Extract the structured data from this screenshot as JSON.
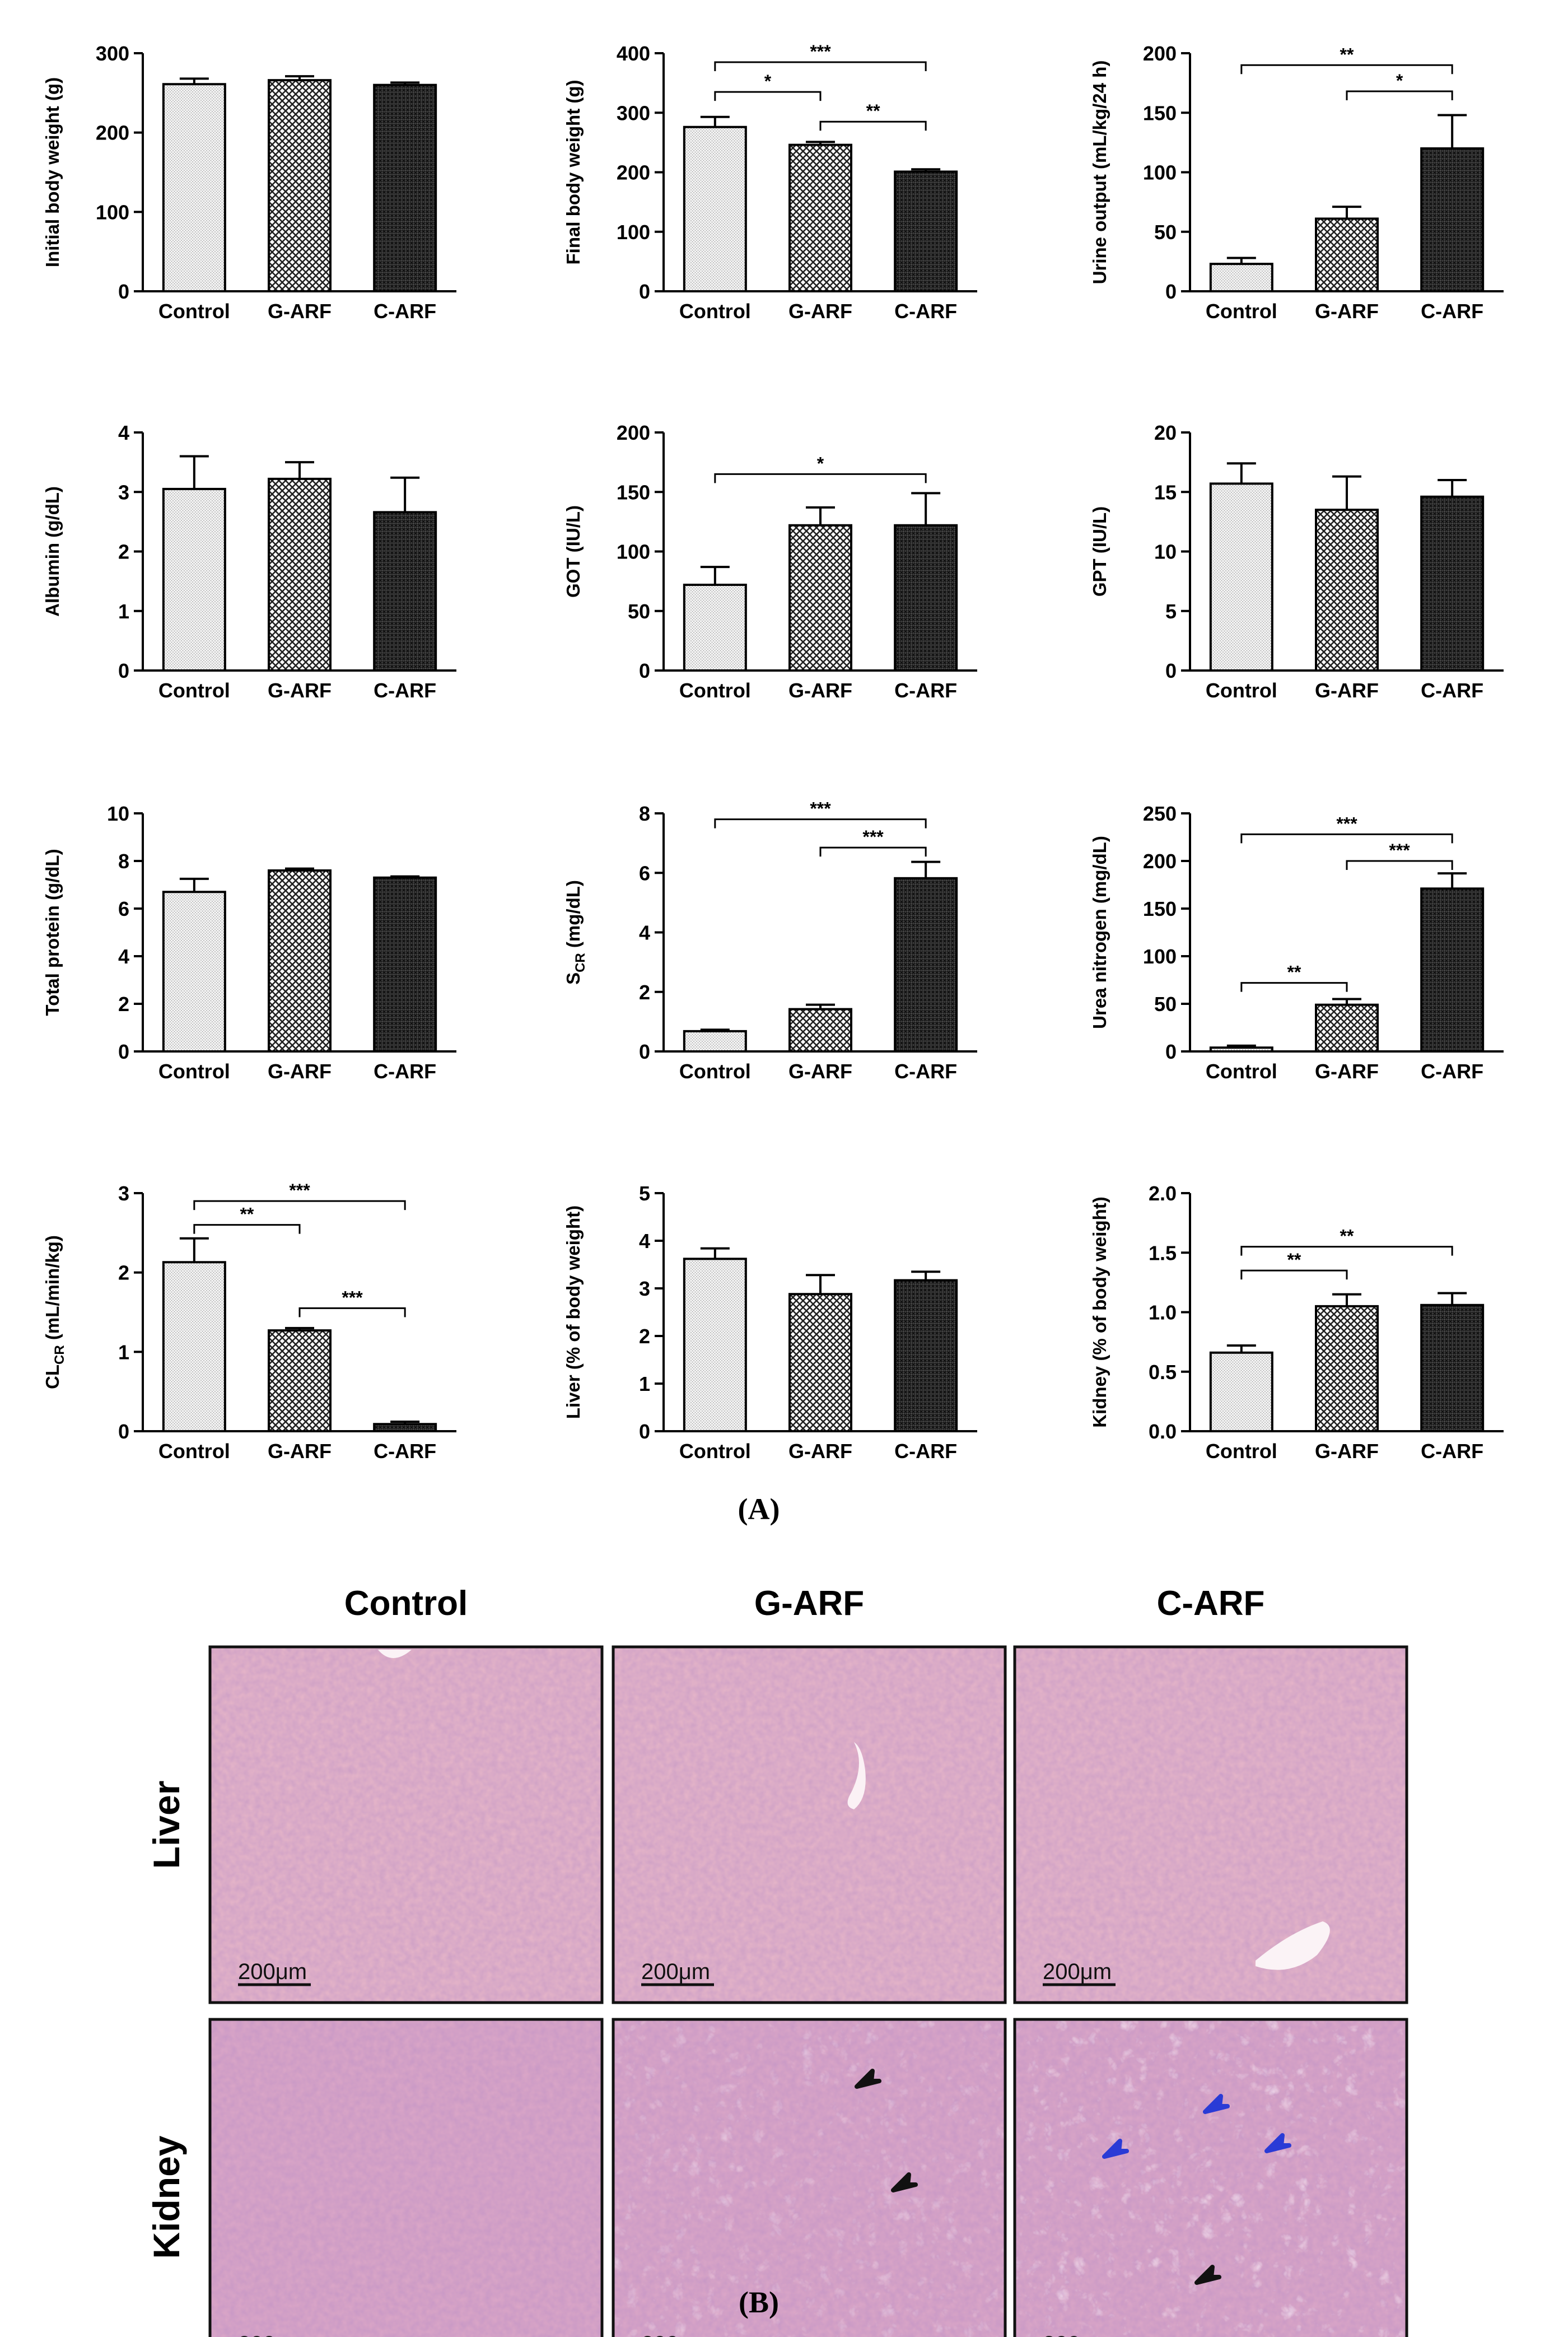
{
  "figure": {
    "panel_a_label": "(A)",
    "panel_b_label": "(B)",
    "columns": [
      "Control",
      "G-ARF",
      "C-ARF"
    ],
    "rows": [
      "Liver",
      "Kidney"
    ],
    "scale_bar": "200μm"
  },
  "chart_data": [
    {
      "type": "bar",
      "ylabel": "Initial body weight (g)",
      "categories": [
        "Control",
        "G-ARF",
        "C-ARF"
      ],
      "values": [
        261,
        266,
        260
      ],
      "errors": [
        7,
        5,
        3
      ],
      "ylim": [
        0,
        300
      ],
      "yticks": [
        0,
        100,
        200,
        300
      ],
      "tick_labels": [
        "0",
        "100",
        "200",
        "300"
      ],
      "significance": []
    },
    {
      "type": "bar",
      "ylabel": "Final body weight (g)",
      "categories": [
        "Control",
        "G-ARF",
        "C-ARF"
      ],
      "values": [
        276,
        246,
        201
      ],
      "errors": [
        17,
        5,
        4
      ],
      "ylim": [
        0,
        400
      ],
      "yticks": [
        0,
        100,
        200,
        300,
        400
      ],
      "tick_labels": [
        "0",
        "100",
        "200",
        "300",
        "400"
      ],
      "significance": [
        {
          "from": 0,
          "to": 1,
          "label": "*",
          "y": 335
        },
        {
          "from": 1,
          "to": 2,
          "label": "**",
          "y": 285
        },
        {
          "from": 0,
          "to": 2,
          "label": "***",
          "y": 385
        }
      ]
    },
    {
      "type": "bar",
      "ylabel": "Urine output (mL/kg/24 h)",
      "categories": [
        "Control",
        "G-ARF",
        "C-ARF"
      ],
      "values": [
        23,
        61,
        120
      ],
      "errors": [
        5,
        10,
        28
      ],
      "ylim": [
        0,
        200
      ],
      "yticks": [
        0,
        50,
        100,
        150,
        200
      ],
      "tick_labels": [
        "0",
        "50",
        "100",
        "150",
        "200"
      ],
      "significance": [
        {
          "from": 1,
          "to": 2,
          "label": "*",
          "y": 168
        },
        {
          "from": 0,
          "to": 2,
          "label": "**",
          "y": 190
        }
      ]
    },
    {
      "type": "bar",
      "ylabel": "Albumin (g/dL)",
      "categories": [
        "Control",
        "G-ARF",
        "C-ARF"
      ],
      "values": [
        3.05,
        3.22,
        2.66
      ],
      "errors": [
        0.55,
        0.28,
        0.58
      ],
      "ylim": [
        0,
        4
      ],
      "yticks": [
        0,
        1,
        2,
        3,
        4
      ],
      "tick_labels": [
        "0",
        "1",
        "2",
        "3",
        "4"
      ],
      "significance": []
    },
    {
      "type": "bar",
      "ylabel": "GOT (IU/L)",
      "categories": [
        "Control",
        "G-ARF",
        "C-ARF"
      ],
      "values": [
        72,
        122,
        122
      ],
      "errors": [
        15,
        15,
        27
      ],
      "ylim": [
        0,
        200
      ],
      "yticks": [
        0,
        50,
        100,
        150,
        200
      ],
      "tick_labels": [
        "0",
        "50",
        "100",
        "150",
        "200"
      ],
      "significance": [
        {
          "from": 0,
          "to": 2,
          "label": "*",
          "y": 165
        }
      ]
    },
    {
      "type": "bar",
      "ylabel": "GPT (IU/L)",
      "categories": [
        "Control",
        "G-ARF",
        "C-ARF"
      ],
      "values": [
        15.7,
        13.5,
        14.6
      ],
      "errors": [
        1.7,
        2.8,
        1.4
      ],
      "ylim": [
        0,
        20
      ],
      "yticks": [
        0,
        5,
        10,
        15,
        20
      ],
      "tick_labels": [
        "0",
        "5",
        "10",
        "15",
        "20"
      ],
      "significance": []
    },
    {
      "type": "bar",
      "ylabel": "Total protein (g/dL)",
      "categories": [
        "Control",
        "G-ARF",
        "C-ARF"
      ],
      "values": [
        6.7,
        7.6,
        7.3
      ],
      "errors": [
        0.55,
        0.08,
        0.05
      ],
      "ylim": [
        0,
        10
      ],
      "yticks": [
        0,
        2,
        4,
        6,
        8,
        10
      ],
      "tick_labels": [
        "0",
        "2",
        "4",
        "6",
        "8",
        "10"
      ],
      "significance": []
    },
    {
      "type": "bar",
      "ylabel": "SCR (mg/dL)",
      "ylabel_main": "S",
      "ylabel_sub": "CR",
      "ylabel_unit": " (mg/dL)",
      "categories": [
        "Control",
        "G-ARF",
        "C-ARF"
      ],
      "values": [
        0.68,
        1.42,
        5.82
      ],
      "errors": [
        0.05,
        0.15,
        0.55
      ],
      "ylim": [
        0,
        8
      ],
      "yticks": [
        0,
        2,
        4,
        6,
        8
      ],
      "tick_labels": [
        "0",
        "2",
        "4",
        "6",
        "8"
      ],
      "significance": [
        {
          "from": 1,
          "to": 2,
          "label": "***",
          "y": 6.85
        },
        {
          "from": 0,
          "to": 2,
          "label": "***",
          "y": 7.8
        }
      ]
    },
    {
      "type": "bar",
      "ylabel": "Urea nitrogen (mg/dL)",
      "categories": [
        "Control",
        "G-ARF",
        "C-ARF"
      ],
      "values": [
        4,
        49,
        171
      ],
      "errors": [
        2,
        6,
        16
      ],
      "ylim": [
        0,
        250
      ],
      "yticks": [
        0,
        50,
        100,
        150,
        200,
        250
      ],
      "tick_labels": [
        "0",
        "50",
        "100",
        "150",
        "200",
        "250"
      ],
      "significance": [
        {
          "from": 0,
          "to": 1,
          "label": "**",
          "y": 72
        },
        {
          "from": 1,
          "to": 2,
          "label": "***",
          "y": 200
        },
        {
          "from": 0,
          "to": 2,
          "label": "***",
          "y": 228
        }
      ]
    },
    {
      "type": "bar",
      "ylabel": "CLCR (mL/min/kg)",
      "ylabel_main": "CL",
      "ylabel_sub": "CR",
      "ylabel_unit": " (mL/min/kg)",
      "categories": [
        "Control",
        "G-ARF",
        "C-ARF"
      ],
      "values": [
        2.13,
        1.27,
        0.09
      ],
      "errors": [
        0.3,
        0.03,
        0.03
      ],
      "ylim": [
        0,
        3
      ],
      "yticks": [
        0,
        1,
        2,
        3
      ],
      "tick_labels": [
        "0",
        "1",
        "2",
        "3"
      ],
      "significance": [
        {
          "from": 0,
          "to": 1,
          "label": "**",
          "y": 2.6
        },
        {
          "from": 1,
          "to": 2,
          "label": "***",
          "y": 1.55
        },
        {
          "from": 0,
          "to": 2,
          "label": "***",
          "y": 2.9
        }
      ]
    },
    {
      "type": "bar",
      "ylabel": "Liver (% of body weight)",
      "categories": [
        "Control",
        "G-ARF",
        "C-ARF"
      ],
      "values": [
        3.62,
        2.88,
        3.17
      ],
      "errors": [
        0.22,
        0.4,
        0.18
      ],
      "ylim": [
        0,
        5
      ],
      "yticks": [
        0,
        1,
        2,
        3,
        4,
        5
      ],
      "tick_labels": [
        "0",
        "1",
        "2",
        "3",
        "4",
        "5"
      ],
      "significance": []
    },
    {
      "type": "bar",
      "ylabel": "Kidney (% of body weight)",
      "categories": [
        "Control",
        "G-ARF",
        "C-ARF"
      ],
      "values": [
        0.66,
        1.05,
        1.06
      ],
      "errors": [
        0.06,
        0.1,
        0.1
      ],
      "ylim": [
        0,
        2
      ],
      "yticks": [
        0,
        0.5,
        1,
        1.5,
        2
      ],
      "tick_labels": [
        "0.0",
        "0.5",
        "1.0",
        "1.5",
        "2.0"
      ],
      "significance": [
        {
          "from": 0,
          "to": 1,
          "label": "**",
          "y": 1.35
        },
        {
          "from": 0,
          "to": 2,
          "label": "**",
          "y": 1.55
        }
      ]
    }
  ],
  "colors": {
    "tissue_liver": "#e7b6c8",
    "tissue_kidney": "#dca7c7",
    "arrow_black": "#111111",
    "arrow_blue": "#2a3bd6"
  }
}
